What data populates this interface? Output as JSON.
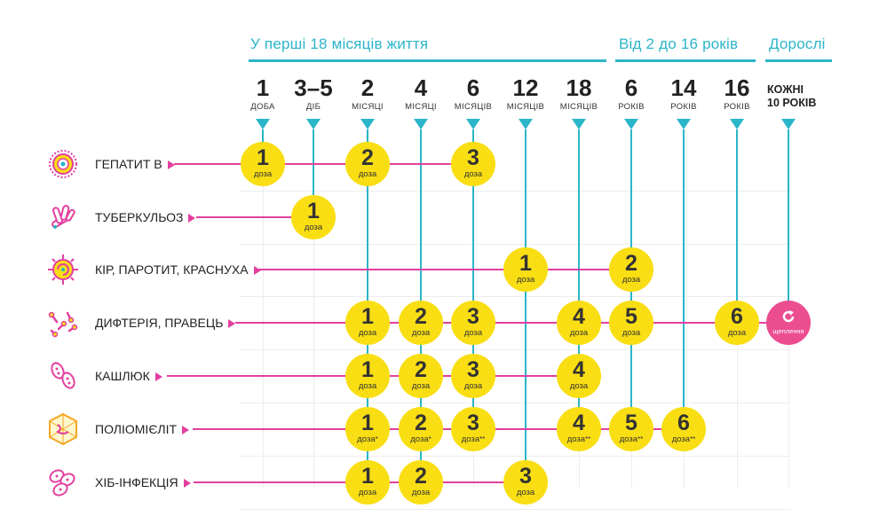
{
  "colors": {
    "teal": "#2bb5c9",
    "pink": "#e33f9f",
    "yellow": "#f9de13",
    "pink_circle": "#eb4d8e"
  },
  "periods": [
    {
      "label": "У перші 18 місяців життя"
    },
    {
      "label": "Від 2 до 16 років"
    },
    {
      "label": "Дорослі"
    }
  ],
  "columns": [
    {
      "num": "1",
      "unit": "ДОБА"
    },
    {
      "num": "3–5",
      "unit": "ДІБ"
    },
    {
      "num": "2",
      "unit": "МІСЯЦІ"
    },
    {
      "num": "4",
      "unit": "МІСЯЦІ"
    },
    {
      "num": "6",
      "unit": "МІСЯЦІВ"
    },
    {
      "num": "12",
      "unit": "МІСЯЦІВ"
    },
    {
      "num": "18",
      "unit": "МІСЯЦІВ"
    },
    {
      "num": "6",
      "unit": "РОКІВ"
    },
    {
      "num": "14",
      "unit": "РОКІВ"
    },
    {
      "num": "16",
      "unit": "РОКІВ"
    },
    {
      "num": "КОЖНІ",
      "unit": "10 РОКІВ"
    }
  ],
  "dose_word": "доза",
  "adult_label": "щеплення",
  "vaccines": [
    {
      "name": "ГЕПАТИТ В",
      "icon": "hepatitis-b-icon",
      "doses": [
        {
          "col": 0,
          "n": "1",
          "mark": ""
        },
        {
          "col": 2,
          "n": "2",
          "mark": ""
        },
        {
          "col": 4,
          "n": "3",
          "mark": ""
        }
      ]
    },
    {
      "name": "ТУБЕРКУЛЬОЗ",
      "icon": "tuberculosis-icon",
      "doses": [
        {
          "col": 1,
          "n": "1",
          "mark": ""
        }
      ]
    },
    {
      "name": "КІР, ПАРОТИТ, КРАСНУХА",
      "icon": "measles-icon",
      "doses": [
        {
          "col": 5,
          "n": "1",
          "mark": ""
        },
        {
          "col": 7,
          "n": "2",
          "mark": ""
        }
      ]
    },
    {
      "name": "ДИФТЕРІЯ, ПРАВЕЦЬ",
      "icon": "diphtheria-icon",
      "doses": [
        {
          "col": 2,
          "n": "1",
          "mark": ""
        },
        {
          "col": 3,
          "n": "2",
          "mark": ""
        },
        {
          "col": 4,
          "n": "3",
          "mark": ""
        },
        {
          "col": 6,
          "n": "4",
          "mark": ""
        },
        {
          "col": 7,
          "n": "5",
          "mark": ""
        },
        {
          "col": 9,
          "n": "6",
          "mark": ""
        }
      ],
      "adult": true
    },
    {
      "name": "КАШЛЮК",
      "icon": "pertussis-icon",
      "doses": [
        {
          "col": 2,
          "n": "1",
          "mark": ""
        },
        {
          "col": 3,
          "n": "2",
          "mark": ""
        },
        {
          "col": 4,
          "n": "3",
          "mark": ""
        },
        {
          "col": 6,
          "n": "4",
          "mark": ""
        }
      ]
    },
    {
      "name": "ПОЛІОМІЄЛІТ",
      "icon": "polio-icon",
      "doses": [
        {
          "col": 2,
          "n": "1",
          "mark": "*"
        },
        {
          "col": 3,
          "n": "2",
          "mark": "*"
        },
        {
          "col": 4,
          "n": "3",
          "mark": "**"
        },
        {
          "col": 6,
          "n": "4",
          "mark": "**"
        },
        {
          "col": 7,
          "n": "5",
          "mark": "**"
        },
        {
          "col": 8,
          "n": "6",
          "mark": "**"
        }
      ]
    },
    {
      "name": "ХІБ-ІНФЕКЦІЯ",
      "icon": "hib-icon",
      "doses": [
        {
          "col": 2,
          "n": "1",
          "mark": ""
        },
        {
          "col": 3,
          "n": "2",
          "mark": ""
        },
        {
          "col": 5,
          "n": "3",
          "mark": ""
        }
      ]
    }
  ]
}
